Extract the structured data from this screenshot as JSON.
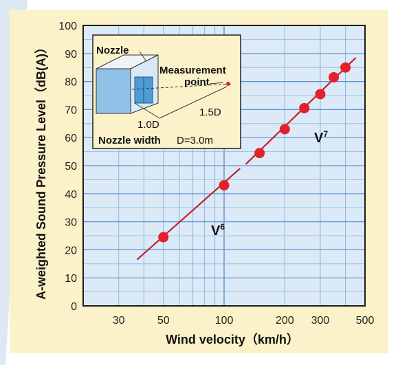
{
  "colors": {
    "background_left": "#dde8f4",
    "card": "#fbf2c9",
    "plot_bg": "#dbeaf6",
    "grid_major": "#5c93cf",
    "grid_minor": "#8cb6e0",
    "line": "#c0202c",
    "marker": "#e2212c",
    "inset_bg": "#fbf2c9"
  },
  "chart_data": {
    "type": "scatter",
    "xlabel": "Wind velocity（km/h）",
    "ylabel": "A-weighted Sound Pressure Level（dB(A)）",
    "x_scale": "log",
    "xlim": [
      20,
      500
    ],
    "ylim": [
      0,
      100
    ],
    "x_ticks": [
      {
        "value": 30,
        "label": "30"
      },
      {
        "value": 50,
        "label": "50"
      },
      {
        "value": 100,
        "label": "100"
      },
      {
        "value": 200,
        "label": "200"
      },
      {
        "value": 300,
        "label": "300"
      },
      {
        "value": 500,
        "label": "500"
      }
    ],
    "y_ticks": [
      {
        "value": 0,
        "label": "0"
      },
      {
        "value": 10,
        "label": "10"
      },
      {
        "value": 20,
        "label": "20"
      },
      {
        "value": 30,
        "label": "30"
      },
      {
        "value": 40,
        "label": "40"
      },
      {
        "value": 50,
        "label": "50"
      },
      {
        "value": 60,
        "label": "60"
      },
      {
        "value": 70,
        "label": "70"
      },
      {
        "value": 80,
        "label": "80"
      },
      {
        "value": 90,
        "label": "90"
      },
      {
        "value": 100,
        "label": "100"
      }
    ],
    "grid": true,
    "points": [
      {
        "x": 50,
        "y": 24.5
      },
      {
        "x": 100,
        "y": 43
      },
      {
        "x": 150,
        "y": 54.5
      },
      {
        "x": 200,
        "y": 63
      },
      {
        "x": 250,
        "y": 70.5
      },
      {
        "x": 300,
        "y": 75.5
      },
      {
        "x": 350,
        "y": 81.5
      },
      {
        "x": 400,
        "y": 85
      }
    ],
    "fit_lines": [
      {
        "from": {
          "x": 37,
          "y": 16.5
        },
        "to": {
          "x": 120,
          "y": 49
        }
      },
      {
        "from": {
          "x": 128,
          "y": 50.5
        },
        "to": {
          "x": 450,
          "y": 88.5
        }
      }
    ],
    "annotations": [
      {
        "base": "V",
        "exponent": "6"
      },
      {
        "base": "V",
        "exponent": "7"
      }
    ],
    "inset": {
      "nozzle_label": "Nozzle",
      "measurement_label_1": "Measurement",
      "measurement_label_2": "point",
      "dim_1": "1.0D",
      "dim_2": "1.5D",
      "nozzle_width_label": "Nozzle width",
      "d_value": "D=3.0m"
    }
  }
}
